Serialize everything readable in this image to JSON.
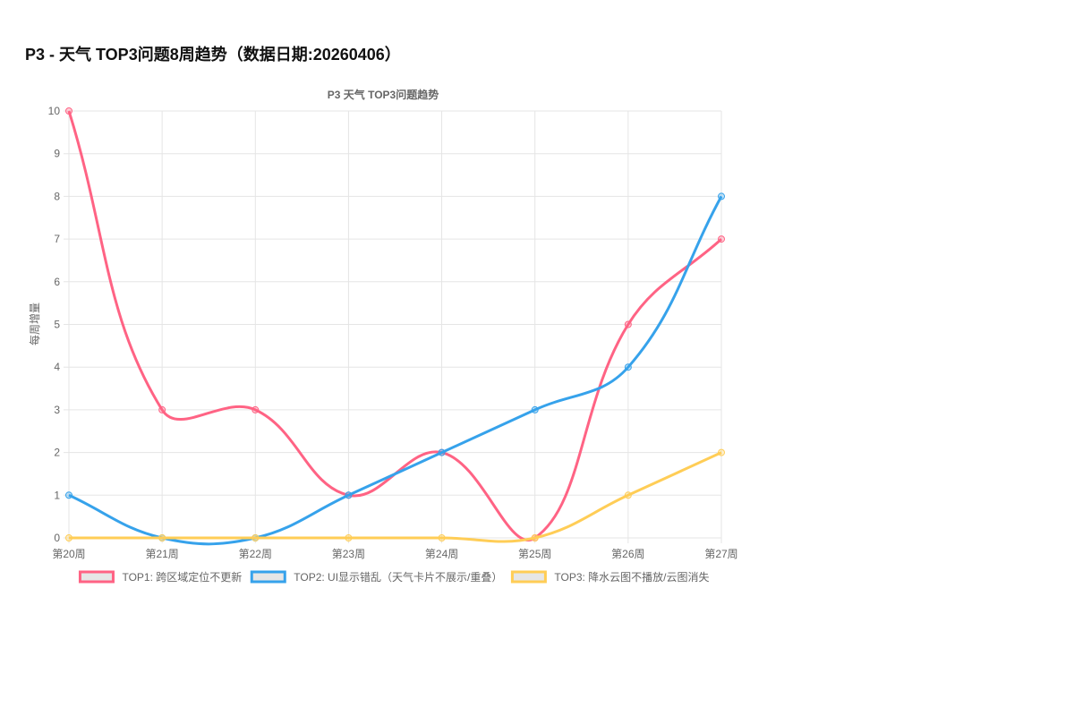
{
  "heading": "P3 - 天气 TOP3问题8周趋势（数据日期:20260406）",
  "chart_data": {
    "type": "line",
    "title": "P3 天气 TOP3问题趋势",
    "y_label": "每周增量",
    "categories": [
      "第20周",
      "第21周",
      "第22周",
      "第23周",
      "第24周",
      "第25周",
      "第26周",
      "第27周"
    ],
    "series": [
      {
        "name": "TOP1: 跨区域定位不更新",
        "color": "#ff6384",
        "values": [
          10,
          3,
          3,
          1,
          2,
          0,
          5,
          7
        ]
      },
      {
        "name": "TOP2: UI显示错乱（天气卡片不展示/重叠）",
        "color": "#36a2eb",
        "values": [
          1,
          0,
          0,
          1,
          2,
          3,
          4,
          8
        ]
      },
      {
        "name": "TOP3: 降水云图不播放/云图消失",
        "color": "#ffcd56",
        "values": [
          0,
          0,
          0,
          0,
          0,
          0,
          1,
          2
        ]
      }
    ],
    "ylim": [
      0,
      10
    ],
    "yticks": [
      0,
      1,
      2,
      3,
      4,
      5,
      6,
      7,
      8,
      9,
      10
    ],
    "grid": true,
    "legend": "bottom"
  }
}
